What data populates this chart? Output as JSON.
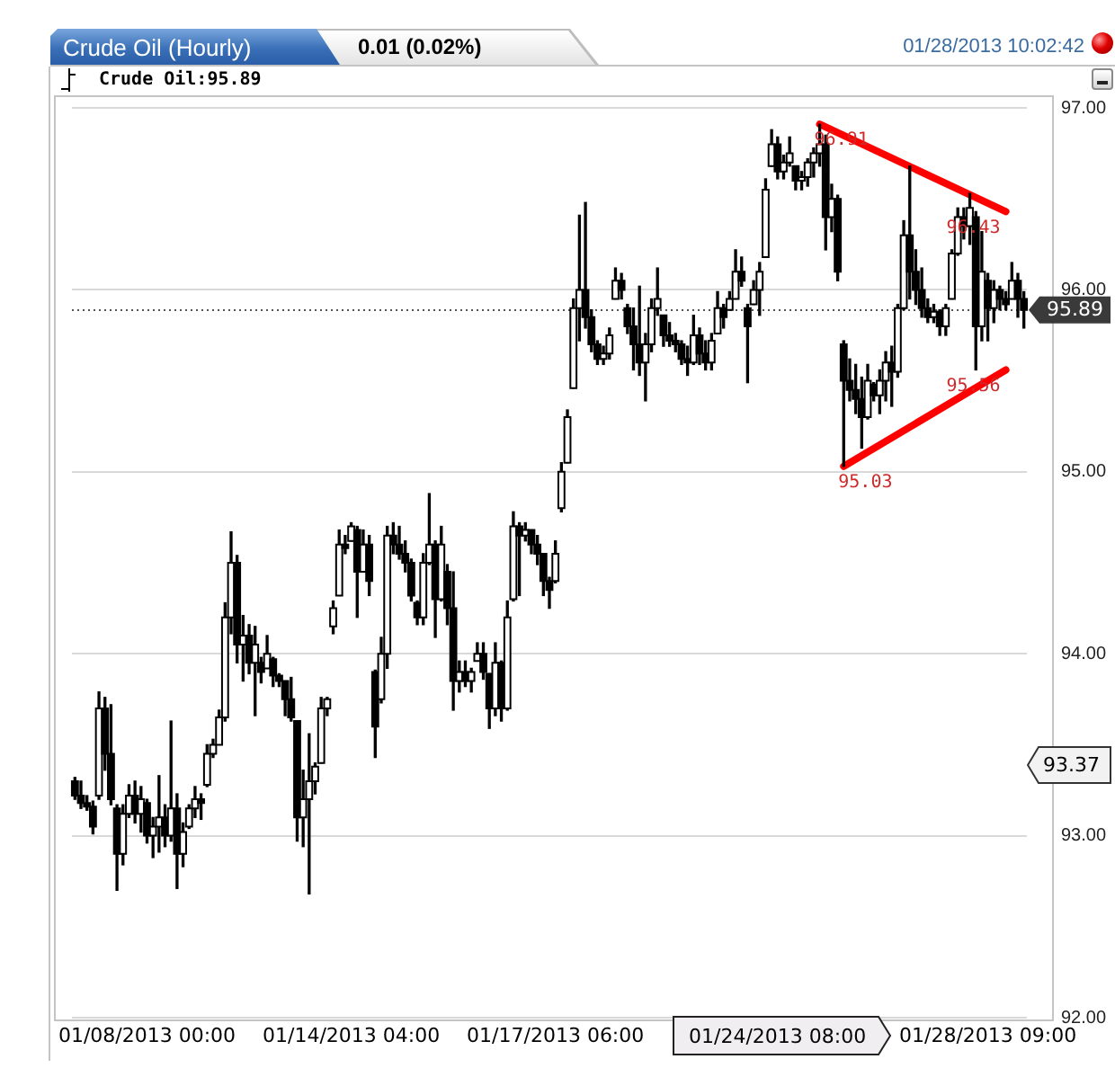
{
  "chart_data": {
    "type": "candlestick",
    "title": "Crude Oil (Hourly)",
    "subtitle": "0.01 (0.02%)",
    "categories": [
      null,
      null,
      null,
      null,
      null,
      null,
      null,
      null,
      null,
      null,
      null,
      null,
      "01/08/2013 00:00",
      null,
      null,
      null,
      null,
      null,
      null,
      null,
      null,
      null,
      null,
      null,
      null,
      null,
      null,
      null,
      null,
      null,
      null,
      null,
      null,
      null,
      null,
      null,
      null,
      null,
      null,
      null,
      null,
      null,
      null,
      null,
      null,
      null,
      "01/14/2013 04:00",
      null,
      null,
      null,
      null,
      null,
      null,
      null,
      null,
      null,
      null,
      null,
      null,
      null,
      null,
      null,
      null,
      null,
      null,
      null,
      null,
      null,
      null,
      null,
      null,
      null,
      null,
      null,
      null,
      null,
      null,
      null,
      null,
      null,
      "01/17/2013 06:00",
      null,
      null,
      null,
      null,
      null,
      null,
      null,
      null,
      null,
      null,
      null,
      null,
      null,
      null,
      null,
      null,
      null,
      null,
      null,
      null,
      null,
      null,
      null,
      null,
      null,
      null,
      null,
      null,
      null,
      null,
      null,
      null,
      null,
      null,
      null,
      null,
      null,
      null,
      null,
      null,
      null,
      null,
      null,
      null,
      null,
      null,
      null,
      null,
      null,
      null,
      null,
      null,
      null,
      null,
      null,
      null,
      null,
      null,
      null,
      null,
      null,
      null,
      null,
      null,
      null,
      null,
      null,
      null,
      null,
      null,
      null,
      "01/28/2013 09:00",
      null,
      null,
      null,
      null,
      null,
      null
    ],
    "series": [
      {
        "name": "Crude Oil:95.89",
        "color": "#000000",
        "colors": [
          "#000000",
          "#000000",
          "#000000",
          "#000000",
          "#ffffff",
          "#000000",
          "#000000",
          "#000000",
          "#ffffff",
          "#ffffff",
          "#000000",
          "#ffffff",
          "#000000",
          "#ffffff",
          "#ffffff",
          "#000000",
          "#ffffff",
          "#000000",
          "#ffffff",
          "#ffffff",
          "#ffffff",
          "#000000",
          "#ffffff",
          "#ffffff",
          "#ffffff",
          "#ffffff",
          "#ffffff",
          "#000000",
          "#ffffff",
          "#000000",
          "#ffffff",
          "#000000",
          "#ffffff",
          "#000000",
          "#000000",
          "#000000",
          "#000000",
          "#000000",
          "#ffffff",
          "#ffffff",
          "#ffffff",
          "#ffffff",
          "#ffffff",
          "#ffffff",
          "#ffffff",
          "#000000",
          "#ffffff",
          "#000000",
          "#ffffff",
          "#000000",
          "#000000",
          "#ffffff",
          "#ffffff",
          "#000000",
          "#000000",
          "#000000",
          "#000000",
          "#000000",
          "#ffffff",
          "#ffffff",
          "#000000",
          "#ffffff",
          "#000000",
          "#000000",
          "#ffffff",
          "#000000",
          "#ffffff",
          "#ffffff",
          "#000000",
          "#000000",
          "#ffffff",
          "#000000",
          "#ffffff",
          "#ffffff",
          "#000000",
          "#ffffff",
          "#000000",
          "#000000",
          "#000000",
          "#000000",
          "#ffffff",
          "#ffffff",
          "#ffffff",
          "#ffffff",
          "#ffffff",
          "#000000",
          "#000000",
          "#000000",
          "#ffffff",
          "#ffffff",
          "#ffffff",
          "#000000",
          "#000000",
          "#000000",
          "#000000",
          "#ffffff",
          "#ffffff",
          "#ffffff",
          "#000000",
          "#000000",
          "#000000",
          "#000000",
          "#000000",
          "#ffffff",
          "#000000",
          "#000000",
          "#ffffff",
          "#ffffff",
          "#000000",
          "#ffffff",
          "#ffffff",
          "#000000",
          "#000000",
          "#ffffff",
          "#ffffff",
          "#ffffff",
          "#ffffff",
          "#000000",
          "#ffffff",
          "#ffffff",
          "#000000",
          "#ffffff",
          "#ffffff",
          "#ffffff",
          "#ffffff",
          "#000000",
          "#ffffff",
          "#000000",
          "#000000",
          "#000000",
          "#000000",
          "#000000",
          "#ffffff",
          "#000000",
          "#ffffff",
          "#ffffff",
          "#000000",
          "#ffffff",
          "#ffffff",
          "#000000",
          "#000000",
          "#000000",
          "#000000",
          "#ffffff",
          "#000000",
          "#ffffff",
          "#ffffff",
          "#ffffff",
          "#000000",
          "#ffffff",
          "#000000",
          "#ffffff",
          "#000000",
          "#ffffff",
          "#000000",
          "#000000",
          "#ffffff",
          "#000000",
          "#000000"
        ],
        "ohlc": [
          [
            93.3,
            93.32,
            93.2,
            93.22
          ],
          [
            93.22,
            93.3,
            93.15,
            93.18
          ],
          [
            93.18,
            93.22,
            93.14,
            93.16
          ],
          [
            93.16,
            93.19,
            93.01,
            93.05
          ],
          [
            93.22,
            93.79,
            93.2,
            93.7
          ],
          [
            93.7,
            93.76,
            93.36,
            93.45
          ],
          [
            93.45,
            93.72,
            93.17,
            93.2
          ],
          [
            93.15,
            93.17,
            92.7,
            92.9
          ],
          [
            92.9,
            93.17,
            92.84,
            93.12
          ],
          [
            93.12,
            93.28,
            93.1,
            93.22
          ],
          [
            93.22,
            93.3,
            93.07,
            93.12
          ],
          [
            93.12,
            93.27,
            93.02,
            93.2
          ],
          [
            93.18,
            93.2,
            92.96,
            93.0
          ],
          [
            93.0,
            93.1,
            92.88,
            93.05
          ],
          [
            93.05,
            93.33,
            92.91,
            93.1
          ],
          [
            93.1,
            93.17,
            92.94,
            93.0
          ],
          [
            93.0,
            93.63,
            92.97,
            93.15
          ],
          [
            93.15,
            93.23,
            92.71,
            92.9
          ],
          [
            92.9,
            93.07,
            92.83,
            93.02
          ],
          [
            93.05,
            93.17,
            93.04,
            93.15
          ],
          [
            93.15,
            93.27,
            93.1,
            93.2
          ],
          [
            93.2,
            93.23,
            93.09,
            93.18
          ],
          [
            93.28,
            93.5,
            93.27,
            93.45
          ],
          [
            93.45,
            93.53,
            93.43,
            93.5
          ],
          [
            93.5,
            93.69,
            93.5,
            93.65
          ],
          [
            93.65,
            94.28,
            93.63,
            94.2
          ],
          [
            94.2,
            94.67,
            94.11,
            94.5
          ],
          [
            94.5,
            94.54,
            93.95,
            94.05
          ],
          [
            94.05,
            94.21,
            93.85,
            94.1
          ],
          [
            94.1,
            94.16,
            93.89,
            93.95
          ],
          [
            93.95,
            94.15,
            93.66,
            94.05
          ],
          [
            93.95,
            93.98,
            93.84,
            93.9
          ],
          [
            93.92,
            94.1,
            93.92,
            94.0
          ],
          [
            93.97,
            93.98,
            93.82,
            93.88
          ],
          [
            93.88,
            93.89,
            93.82,
            93.85
          ],
          [
            93.85,
            93.85,
            93.66,
            93.75
          ],
          [
            93.75,
            93.87,
            93.63,
            93.65
          ],
          [
            93.63,
            93.63,
            92.97,
            93.1
          ],
          [
            93.1,
            93.36,
            92.94,
            93.2
          ],
          [
            93.2,
            93.56,
            92.68,
            93.3
          ],
          [
            93.3,
            93.4,
            93.23,
            93.38
          ],
          [
            93.4,
            93.76,
            93.4,
            93.7
          ],
          [
            93.7,
            93.76,
            93.66,
            93.75
          ],
          [
            94.15,
            94.29,
            94.11,
            94.25
          ],
          [
            94.32,
            94.68,
            94.32,
            94.6
          ],
          [
            94.6,
            94.65,
            94.55,
            94.58
          ],
          [
            94.62,
            94.72,
            94.62,
            94.7
          ],
          [
            94.68,
            94.7,
            94.2,
            94.45
          ],
          [
            94.45,
            94.68,
            94.45,
            94.6
          ],
          [
            94.6,
            94.65,
            94.32,
            94.4
          ],
          [
            93.9,
            93.91,
            93.43,
            93.6
          ],
          [
            93.75,
            94.09,
            93.73,
            94.0
          ],
          [
            94.0,
            94.7,
            93.92,
            94.65
          ],
          [
            94.65,
            94.72,
            94.55,
            94.6
          ],
          [
            94.6,
            94.7,
            94.52,
            94.55
          ],
          [
            94.55,
            94.62,
            94.45,
            94.5
          ],
          [
            94.5,
            94.52,
            94.29,
            94.32
          ],
          [
            94.28,
            94.29,
            94.16,
            94.2
          ],
          [
            94.2,
            94.55,
            94.16,
            94.5
          ],
          [
            94.5,
            94.88,
            94.49,
            94.6
          ],
          [
            94.6,
            94.62,
            94.09,
            94.3
          ],
          [
            94.3,
            94.7,
            94.29,
            94.6
          ],
          [
            94.45,
            94.49,
            94.16,
            94.25
          ],
          [
            94.25,
            94.45,
            93.69,
            93.85
          ],
          [
            93.85,
            93.96,
            93.79,
            93.9
          ],
          [
            93.9,
            93.96,
            93.82,
            93.85
          ],
          [
            93.85,
            93.92,
            93.79,
            93.9
          ],
          [
            93.96,
            94.06,
            93.96,
            94.0
          ],
          [
            94.0,
            94.06,
            93.86,
            93.9
          ],
          [
            93.89,
            93.89,
            93.59,
            93.7
          ],
          [
            93.7,
            94.06,
            93.66,
            93.95
          ],
          [
            93.95,
            93.96,
            93.63,
            93.7
          ],
          [
            93.7,
            94.29,
            93.69,
            94.2
          ],
          [
            94.3,
            94.78,
            94.29,
            94.7
          ],
          [
            94.7,
            94.72,
            94.32,
            94.65
          ],
          [
            94.65,
            94.72,
            94.62,
            94.68
          ],
          [
            94.68,
            94.68,
            94.55,
            94.6
          ],
          [
            94.6,
            94.65,
            94.49,
            94.55
          ],
          [
            94.55,
            94.55,
            94.32,
            94.4
          ],
          [
            94.4,
            94.42,
            94.25,
            94.35
          ],
          [
            94.4,
            94.62,
            94.39,
            94.55
          ],
          [
            94.8,
            95.05,
            94.78,
            95.0
          ],
          [
            95.05,
            95.34,
            95.05,
            95.3
          ],
          [
            95.46,
            95.95,
            95.46,
            95.9
          ],
          [
            95.9,
            96.41,
            95.72,
            96.0
          ],
          [
            96.0,
            96.48,
            95.79,
            95.85
          ],
          [
            95.85,
            95.89,
            95.66,
            95.7
          ],
          [
            95.7,
            95.72,
            95.59,
            95.62
          ],
          [
            95.62,
            95.69,
            95.59,
            95.65
          ],
          [
            95.65,
            95.79,
            95.62,
            95.75
          ],
          [
            95.95,
            96.12,
            95.95,
            96.05
          ],
          [
            96.05,
            96.09,
            95.95,
            96.0
          ],
          [
            95.9,
            95.92,
            95.76,
            95.8
          ],
          [
            95.8,
            95.9,
            95.56,
            95.7
          ],
          [
            95.7,
            96.02,
            95.53,
            95.6
          ],
          [
            95.6,
            95.76,
            95.39,
            95.7
          ],
          [
            95.7,
            95.95,
            95.66,
            95.9
          ],
          [
            95.9,
            96.12,
            95.86,
            95.95
          ],
          [
            95.86,
            95.86,
            95.69,
            95.75
          ],
          [
            95.75,
            95.82,
            95.69,
            95.72
          ],
          [
            95.72,
            95.76,
            95.66,
            95.7
          ],
          [
            95.7,
            95.72,
            95.59,
            95.62
          ],
          [
            95.62,
            95.69,
            95.53,
            95.6
          ],
          [
            95.6,
            95.86,
            95.59,
            95.75
          ],
          [
            95.75,
            95.79,
            95.59,
            95.65
          ],
          [
            95.65,
            95.72,
            95.56,
            95.6
          ],
          [
            95.6,
            95.76,
            95.56,
            95.72
          ],
          [
            95.76,
            95.99,
            95.76,
            95.9
          ],
          [
            95.9,
            95.92,
            95.79,
            95.85
          ],
          [
            95.89,
            95.99,
            95.89,
            95.95
          ],
          [
            95.95,
            96.22,
            95.95,
            96.1
          ],
          [
            96.1,
            96.18,
            96.02,
            96.05
          ],
          [
            95.9,
            95.92,
            95.49,
            95.8
          ],
          [
            95.92,
            96.05,
            95.92,
            96.0
          ],
          [
            96.0,
            96.15,
            95.86,
            96.1
          ],
          [
            96.18,
            96.61,
            96.18,
            96.55
          ],
          [
            96.68,
            96.88,
            96.68,
            96.8
          ],
          [
            96.8,
            96.84,
            96.61,
            96.65
          ],
          [
            96.65,
            96.74,
            96.61,
            96.7
          ],
          [
            96.7,
            96.84,
            96.68,
            96.75
          ],
          [
            96.68,
            96.68,
            96.55,
            96.6
          ],
          [
            96.6,
            96.65,
            96.55,
            96.62
          ],
          [
            96.62,
            96.72,
            96.57,
            96.7
          ],
          [
            96.7,
            96.78,
            96.62,
            96.75
          ],
          [
            96.75,
            96.91,
            96.68,
            96.8
          ],
          [
            96.8,
            96.85,
            96.22,
            96.4
          ],
          [
            96.4,
            96.58,
            96.32,
            96.5
          ],
          [
            96.5,
            96.52,
            96.05,
            96.1
          ],
          [
            95.7,
            95.72,
            95.03,
            95.5
          ],
          [
            95.5,
            95.62,
            95.39,
            95.45
          ],
          [
            95.45,
            95.59,
            95.32,
            95.4
          ],
          [
            95.4,
            95.52,
            95.13,
            95.3
          ],
          [
            95.3,
            95.59,
            95.29,
            95.5
          ],
          [
            95.48,
            95.49,
            95.39,
            95.42
          ],
          [
            95.42,
            95.56,
            95.32,
            95.5
          ],
          [
            95.5,
            95.66,
            95.39,
            95.6
          ],
          [
            95.6,
            95.69,
            95.36,
            95.55
          ],
          [
            95.55,
            95.92,
            95.52,
            95.9
          ],
          [
            95.9,
            96.38,
            95.89,
            96.3
          ],
          [
            96.3,
            96.68,
            95.95,
            96.1
          ],
          [
            96.1,
            96.22,
            95.92,
            96.0
          ],
          [
            96.0,
            96.12,
            95.85,
            95.9
          ],
          [
            95.9,
            95.95,
            95.82,
            95.85
          ],
          [
            95.85,
            95.92,
            95.82,
            95.88
          ],
          [
            95.88,
            95.89,
            95.75,
            95.8
          ],
          [
            95.8,
            95.92,
            95.75,
            95.9
          ],
          [
            95.95,
            96.22,
            95.95,
            96.2
          ],
          [
            96.2,
            96.45,
            96.19,
            96.4
          ],
          [
            96.4,
            96.45,
            96.28,
            96.35
          ],
          [
            96.35,
            96.53,
            96.25,
            96.45
          ],
          [
            96.4,
            96.43,
            95.56,
            95.8
          ],
          [
            95.8,
            96.32,
            95.72,
            96.1
          ],
          [
            96.05,
            96.09,
            95.72,
            95.9
          ],
          [
            95.9,
            96.05,
            95.82,
            96.0
          ],
          [
            96.0,
            96.02,
            95.89,
            95.95
          ],
          [
            95.95,
            95.99,
            95.89,
            95.92
          ],
          [
            95.95,
            96.15,
            95.95,
            96.05
          ],
          [
            96.05,
            96.09,
            95.85,
            95.95
          ],
          [
            95.95,
            95.99,
            95.79,
            95.89
          ]
        ]
      },
      {
        "type": "line",
        "color": "#ff0000",
        "values": [
          null,
          null,
          null,
          null,
          null,
          null,
          null,
          null,
          null,
          null,
          null,
          null,
          null,
          null,
          null,
          null,
          null,
          null,
          null,
          null,
          null,
          null,
          null,
          null,
          null,
          null,
          null,
          null,
          null,
          null,
          null,
          null,
          null,
          null,
          null,
          null,
          null,
          null,
          null,
          null,
          null,
          null,
          null,
          null,
          null,
          null,
          null,
          null,
          null,
          null,
          null,
          null,
          null,
          null,
          null,
          null,
          null,
          null,
          null,
          null,
          null,
          null,
          null,
          null,
          null,
          null,
          null,
          null,
          null,
          null,
          null,
          null,
          null,
          null,
          null,
          null,
          null,
          null,
          null,
          null,
          null,
          null,
          null,
          null,
          null,
          null,
          null,
          null,
          null,
          null,
          null,
          null,
          null,
          null,
          null,
          null,
          null,
          null,
          null,
          null,
          null,
          null,
          null,
          null,
          null,
          null,
          null,
          null,
          null,
          null,
          null,
          null,
          null,
          null,
          null,
          null,
          null,
          null,
          null,
          null,
          null,
          null,
          null,
          null,
          96.91,
          null,
          null,
          null,
          null,
          null,
          null,
          null,
          null,
          null,
          null,
          null,
          null,
          null,
          null,
          null,
          null,
          null,
          null,
          null,
          null,
          null,
          null,
          null,
          null,
          null,
          null,
          null,
          null,
          null,
          null,
          96.43,
          null,
          null,
          null
        ]
      },
      {
        "type": "line",
        "color": "#ff0000",
        "values": [
          null,
          null,
          null,
          null,
          null,
          null,
          null,
          null,
          null,
          null,
          null,
          null,
          null,
          null,
          null,
          null,
          null,
          null,
          null,
          null,
          null,
          null,
          null,
          null,
          null,
          null,
          null,
          null,
          null,
          null,
          null,
          null,
          null,
          null,
          null,
          null,
          null,
          null,
          null,
          null,
          null,
          null,
          null,
          null,
          null,
          null,
          null,
          null,
          null,
          null,
          null,
          null,
          null,
          null,
          null,
          null,
          null,
          null,
          null,
          null,
          null,
          null,
          null,
          null,
          null,
          null,
          null,
          null,
          null,
          null,
          null,
          null,
          null,
          null,
          null,
          null,
          null,
          null,
          null,
          null,
          null,
          null,
          null,
          null,
          null,
          null,
          null,
          null,
          null,
          null,
          null,
          null,
          null,
          null,
          null,
          null,
          null,
          null,
          null,
          null,
          null,
          null,
          null,
          null,
          null,
          null,
          null,
          null,
          null,
          null,
          null,
          null,
          null,
          null,
          null,
          null,
          null,
          null,
          null,
          null,
          null,
          null,
          null,
          null,
          null,
          null,
          null,
          null,
          95.03,
          null,
          null,
          null,
          null,
          null,
          null,
          null,
          null,
          null,
          null,
          null,
          null,
          null,
          null,
          null,
          null,
          null,
          null,
          null,
          null,
          null,
          null,
          null,
          null,
          null,
          null,
          95.56,
          null,
          null,
          null
        ]
      }
    ],
    "ylim": [
      92,
      97
    ],
    "yticks": [
      {
        "value": 92,
        "label": "92.00"
      },
      {
        "value": 93,
        "label": "93.00"
      },
      {
        "value": 94,
        "label": "94.00"
      },
      {
        "value": 95,
        "label": "95.00"
      },
      {
        "value": 96,
        "label": "96.00"
      },
      {
        "value": 97,
        "label": "97.00"
      }
    ],
    "grid": "y",
    "legend": "top left",
    "ref_lines": [
      {
        "axis": "y",
        "value": 95.89,
        "label": "95.89",
        "color": "#555555",
        "line_style": "dotted"
      }
    ],
    "annotations": [
      "01/28/2013 10:02:42",
      {
        "text": "96.91",
        "y": 96.91
      },
      {
        "text": "96.43",
        "y": 96.43
      },
      {
        "text": "95.03",
        "y": 95.03
      },
      {
        "text": "95.56",
        "y": 95.56
      },
      "93.37",
      "01/24/2013 08:00"
    ]
  }
}
